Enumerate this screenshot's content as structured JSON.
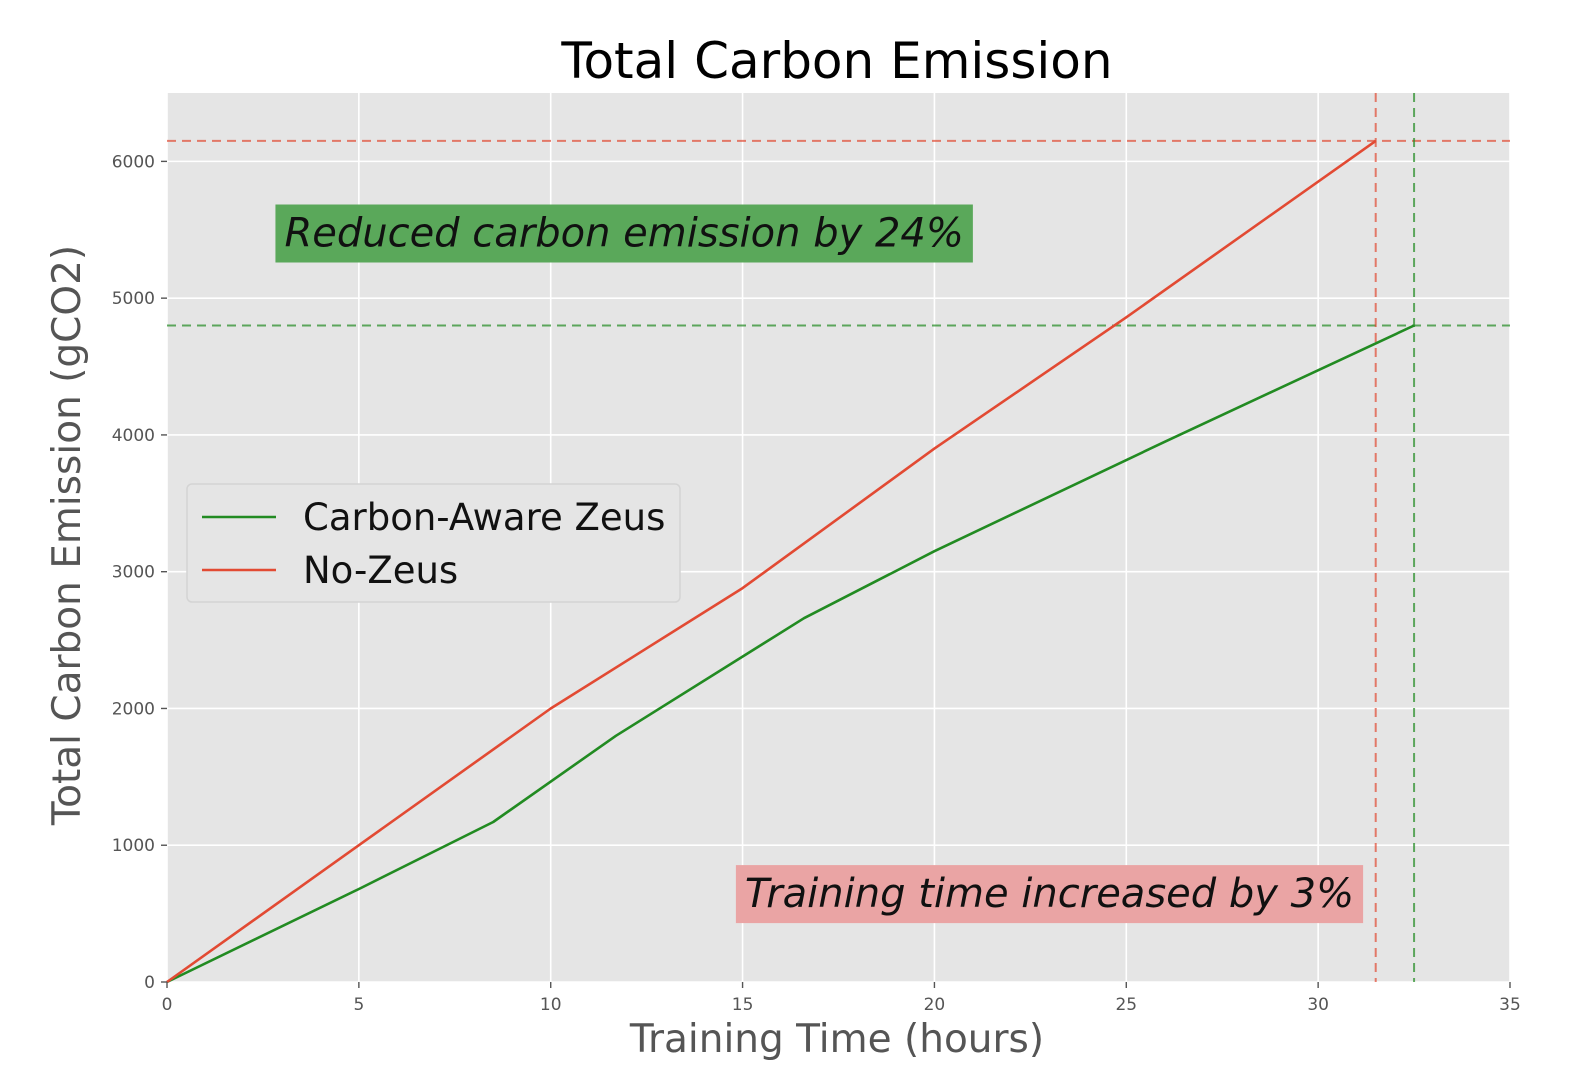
{
  "chart_data": {
    "type": "line",
    "title": "Total Carbon Emission",
    "xlabel": "Training Time (hours)",
    "ylabel": "Total Carbon Emission (gCO2)",
    "xlim": [
      0,
      35
    ],
    "ylim": [
      0,
      6500
    ],
    "xticks": [
      0,
      5,
      10,
      15,
      20,
      25,
      30,
      35
    ],
    "yticks": [
      0,
      1000,
      2000,
      3000,
      4000,
      5000,
      6000
    ],
    "xtick_labels": [
      "0",
      "5",
      "10",
      "15",
      "20",
      "25",
      "30",
      "35"
    ],
    "ytick_labels": [
      "0",
      "1000",
      "2000",
      "3000",
      "4000",
      "5000",
      "6000"
    ],
    "grid": true,
    "legend_position": "center-left",
    "series": [
      {
        "name": "Carbon-Aware Zeus",
        "color": "#228b22",
        "x": [
          0,
          5,
          8.5,
          11.7,
          16.6,
          20,
          26,
          32.5
        ],
        "y": [
          0,
          680,
          1170,
          1800,
          2660,
          3150,
          3950,
          4800
        ]
      },
      {
        "name": "No-Zeus",
        "color": "#e24a33",
        "x": [
          0,
          5,
          10,
          15,
          20,
          25,
          31.5
        ],
        "y": [
          0,
          1000,
          2000,
          2880,
          3900,
          4860,
          6150
        ]
      }
    ],
    "reference_lines": [
      {
        "orientation": "horizontal",
        "value": 6150,
        "color": "#e24a33"
      },
      {
        "orientation": "horizontal",
        "value": 4800,
        "color": "#228b22"
      },
      {
        "orientation": "vertical",
        "value": 31.5,
        "color": "#e24a33"
      },
      {
        "orientation": "vertical",
        "value": 32.5,
        "color": "#228b22"
      }
    ],
    "annotations": [
      {
        "text": "Reduced carbon emission by 24%",
        "background": "#5aa85a",
        "x": 2.8,
        "y": 5480
      },
      {
        "text": "Training time increased by 3%",
        "background": "#eaa4a4",
        "x": 14.8,
        "y": 650
      }
    ]
  }
}
